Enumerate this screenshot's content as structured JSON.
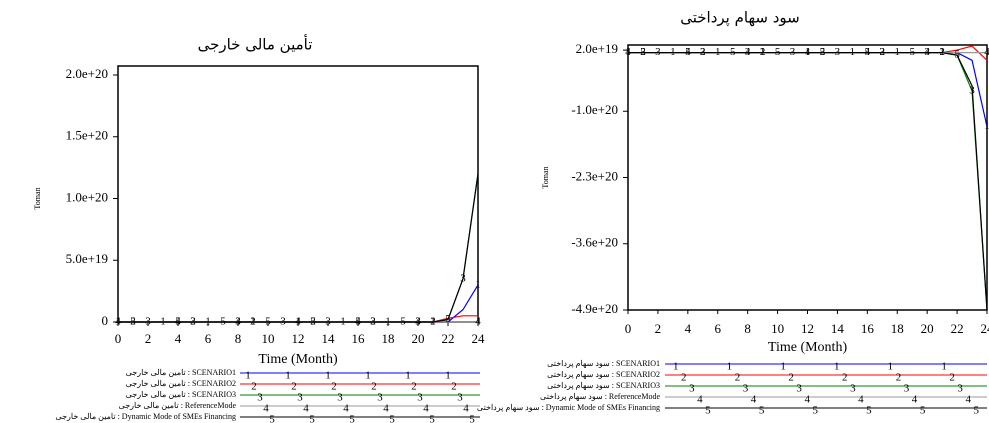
{
  "chart_data": [
    {
      "type": "line",
      "title": "تأمین مالی خارجی",
      "y_label": "Toman",
      "x_label": "Time (Month)",
      "x": [
        0,
        1,
        2,
        3,
        4,
        5,
        6,
        7,
        8,
        9,
        10,
        11,
        12,
        13,
        14,
        15,
        16,
        17,
        18,
        19,
        20,
        21,
        22,
        23,
        24
      ],
      "xlim": [
        0,
        24
      ],
      "xticks": [
        0,
        2,
        4,
        6,
        8,
        10,
        12,
        14,
        16,
        18,
        20,
        22,
        24
      ],
      "ylim": [
        0,
        2e+20
      ],
      "yticks": [
        0,
        {
          "value": 5e+19,
          "label": "5.0e+19"
        },
        {
          "value": 1e+20,
          "label": "1.0e+20"
        },
        {
          "value": 1.5e+20,
          "label": "1.5e+20"
        },
        {
          "value": 2e+20,
          "label": "2.0e+20"
        }
      ],
      "series": [
        {
          "name": "تامین مالی خارجی : SCENARIO1",
          "marker": "1",
          "color": "#0000ff",
          "values": [
            0,
            0,
            0,
            0,
            0,
            0,
            0,
            0,
            0,
            0,
            0,
            0,
            0,
            0,
            0,
            0,
            0,
            0,
            0,
            0,
            0,
            0,
            0,
            1e+19,
            3e+19
          ]
        },
        {
          "name": "تامین مالی خارجی : SCENARIO2",
          "marker": "2",
          "color": "#ff0000",
          "values": [
            0,
            0,
            0,
            0,
            0,
            0,
            0,
            0,
            0,
            0,
            0,
            0,
            0,
            0,
            0,
            0,
            0,
            0,
            0,
            0,
            0,
            0,
            3e+18,
            5e+18,
            5e+18
          ]
        },
        {
          "name": "تامین مالی خارجی : SCENARIO3",
          "marker": "3",
          "color": "#008000",
          "values": [
            0,
            0,
            0,
            0,
            0,
            0,
            0,
            0,
            0,
            0,
            0,
            0,
            0,
            0,
            0,
            0,
            0,
            0,
            0,
            0,
            0,
            0,
            2e+18,
            3.5e+19,
            1.2e+20
          ]
        },
        {
          "name": "تامین مالی خارجی : ReferenceMode",
          "marker": "4",
          "color": "#999999",
          "values": [
            0,
            0,
            0,
            0,
            0,
            0,
            0,
            0,
            0,
            0,
            0,
            0,
            0,
            0,
            0,
            0,
            0,
            0,
            0,
            0,
            0,
            0,
            0,
            0,
            0
          ]
        },
        {
          "name": "تامین مالی خارجی : Dynamic Mode of SMEs Financing",
          "marker": "5",
          "color": "#000000",
          "values": [
            0,
            0,
            0,
            0,
            0,
            0,
            0,
            0,
            0,
            0,
            0,
            0,
            0,
            0,
            0,
            0,
            0,
            0,
            0,
            0,
            0,
            0,
            2e+18,
            3.5e+19,
            1.2e+20
          ]
        }
      ]
    },
    {
      "type": "line",
      "title": "سود سهام پرداختی",
      "y_label": "Toman",
      "x_label": "Time (Month)",
      "x": [
        0,
        1,
        2,
        3,
        4,
        5,
        6,
        7,
        8,
        9,
        10,
        11,
        12,
        13,
        14,
        15,
        16,
        17,
        18,
        19,
        20,
        21,
        22,
        23,
        24
      ],
      "xlim": [
        0,
        24
      ],
      "xticks": [
        0,
        2,
        4,
        6,
        8,
        10,
        12,
        14,
        16,
        18,
        20,
        22,
        24
      ],
      "ylim": [
        -4.9e+20,
        3e+19
      ],
      "yticks": [
        {
          "value": 2e+19,
          "label": "2.0e+19"
        },
        {
          "value": -1e+20,
          "label": "-1.0e+20"
        },
        {
          "value": -2.3e+20,
          "label": "-2.3e+20"
        },
        {
          "value": -3.6e+20,
          "label": "-3.6e+20"
        },
        {
          "value": -4.9e+20,
          "label": "-4.9e+20"
        }
      ],
      "series": [
        {
          "name": "سود سهام پرداختی : SCENARIO1",
          "marker": "1",
          "color": "#0000ff",
          "values": [
            1.5e+19,
            1.5e+19,
            1.5e+19,
            1.5e+19,
            1.5e+19,
            1.5e+19,
            1.5e+19,
            1.5e+19,
            1.5e+19,
            1.5e+19,
            1.5e+19,
            1.5e+19,
            1.5e+19,
            1.5e+19,
            1.5e+19,
            1.5e+19,
            1.5e+19,
            1.5e+19,
            1.5e+19,
            1.5e+19,
            1.5e+19,
            1.5e+19,
            1.5e+19,
            0,
            -1.3e+20
          ]
        },
        {
          "name": "سود سهام پرداختی : SCENARIO2",
          "marker": "2",
          "color": "#ff0000",
          "values": [
            1.5e+19,
            1.5e+19,
            1.5e+19,
            1.5e+19,
            1.5e+19,
            1.5e+19,
            1.5e+19,
            1.5e+19,
            1.5e+19,
            1.5e+19,
            1.5e+19,
            1.5e+19,
            1.5e+19,
            1.5e+19,
            1.5e+19,
            1.5e+19,
            1.5e+19,
            1.5e+19,
            1.5e+19,
            1.5e+19,
            1.5e+19,
            1.5e+19,
            2e+19,
            2.8e+19,
            0
          ]
        },
        {
          "name": "سود سهام پرداختی : SCENARIO3",
          "marker": "3",
          "color": "#008000",
          "values": [
            1.5e+19,
            1.5e+19,
            1.5e+19,
            1.5e+19,
            1.5e+19,
            1.5e+19,
            1.5e+19,
            1.5e+19,
            1.5e+19,
            1.5e+19,
            1.5e+19,
            1.5e+19,
            1.5e+19,
            1.5e+19,
            1.5e+19,
            1.5e+19,
            1.5e+19,
            1.5e+19,
            1.5e+19,
            1.5e+19,
            1.5e+19,
            1.5e+19,
            1e+19,
            -6e+19,
            -4.9e+20
          ]
        },
        {
          "name": "سود سهام پرداختی : ReferenceMode",
          "marker": "4",
          "color": "#999999",
          "values": [
            1.5e+19,
            1.5e+19,
            1.5e+19,
            1.5e+19,
            1.5e+19,
            1.5e+19,
            1.5e+19,
            1.5e+19,
            1.5e+19,
            1.5e+19,
            1.5e+19,
            1.5e+19,
            1.5e+19,
            1.5e+19,
            1.5e+19,
            1.5e+19,
            1.5e+19,
            1.5e+19,
            1.5e+19,
            1.5e+19,
            1.5e+19,
            1.5e+19,
            1.5e+19,
            1.5e+19,
            1.5e+19
          ]
        },
        {
          "name": "سود سهام پرداختی : Dynamic Mode of SMEs Financing",
          "marker": "5",
          "color": "#000000",
          "values": [
            1.5e+19,
            1.5e+19,
            1.5e+19,
            1.5e+19,
            1.5e+19,
            1.5e+19,
            1.5e+19,
            1.5e+19,
            1.5e+19,
            1.5e+19,
            1.5e+19,
            1.5e+19,
            1.5e+19,
            1.5e+19,
            1.5e+19,
            1.5e+19,
            1.5e+19,
            1.5e+19,
            1.5e+19,
            1.5e+19,
            1.5e+19,
            1.5e+19,
            1e+19,
            -5e+19,
            -4.9e+20
          ]
        }
      ]
    }
  ]
}
